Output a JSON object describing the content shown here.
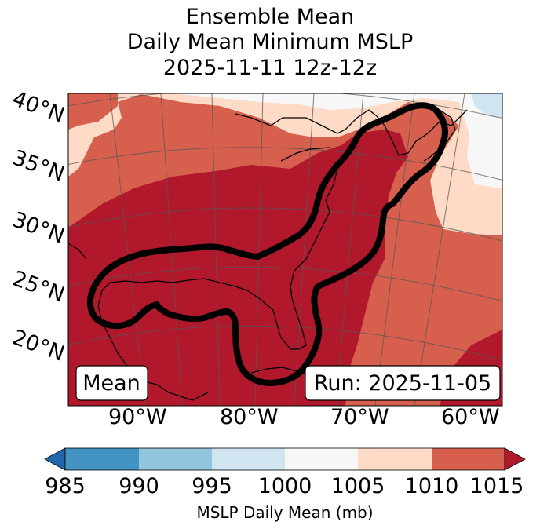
{
  "title": {
    "line1": "Ensemble Mean",
    "line2": "Daily Mean Minimum MSLP",
    "line3": "2025-11-11 12z-12z"
  },
  "map": {
    "lat_labels": [
      "40°N",
      "35°N",
      "30°N",
      "25°N",
      "20°N"
    ],
    "lon_labels": [
      "90°W",
      "80°W",
      "70°W",
      "60°W"
    ],
    "mean_box": "Mean",
    "run_box": "Run: 2025-11-05",
    "contour_description_level_mb": 1010,
    "colors": {
      "c985": "#4393c3",
      "c990": "#92c5de",
      "c995": "#d1e5f0",
      "c1000": "#f7f7f7",
      "c1005": "#fddbc7",
      "c1010": "#d6604d",
      "c1015": "#b2182b",
      "c_low": "#2166ac"
    }
  },
  "colorbar": {
    "ticks": [
      "985",
      "990",
      "995",
      "1000",
      "1005",
      "1010",
      "1015"
    ],
    "label": "MSLP Daily Mean (mb)",
    "bin_colors": [
      "#4393c3",
      "#92c5de",
      "#d1e5f0",
      "#f7f7f7",
      "#fddbc7",
      "#d6604d"
    ],
    "extend_min_color": "#2166ac",
    "extend_max_color": "#b2182b"
  }
}
